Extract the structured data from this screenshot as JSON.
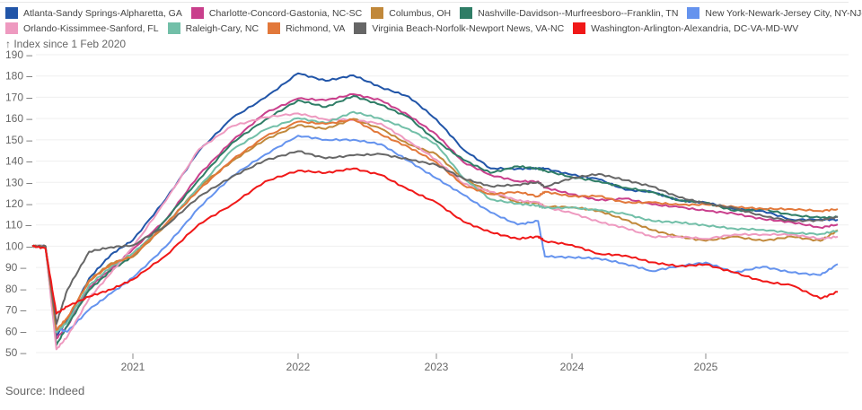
{
  "chart_data": {
    "type": "line",
    "title": "",
    "ylabel": "Index since 1 Feb 2020",
    "xlabel": "",
    "ylim": [
      50,
      190
    ],
    "yticks": [
      50,
      60,
      70,
      80,
      90,
      100,
      110,
      120,
      130,
      140,
      150,
      160,
      170,
      180,
      190
    ],
    "xticks": [
      "2021",
      "2022",
      "2023",
      "2024",
      "2025"
    ],
    "xlim": [
      2020.08,
      2025.92
    ],
    "grid": true,
    "legend_position": "top",
    "x": [
      2020.08,
      2020.2,
      2020.3,
      2020.4,
      2020.6,
      2020.8,
      2021.0,
      2021.2,
      2021.4,
      2021.6,
      2021.8,
      2022.0,
      2022.2,
      2022.4,
      2022.6,
      2022.8,
      2023.0,
      2023.2,
      2023.4,
      2023.6,
      2023.75,
      2023.8,
      2024.0,
      2024.2,
      2024.4,
      2024.6,
      2024.8,
      2025.0,
      2025.2,
      2025.4,
      2025.6,
      2025.8,
      2025.92
    ],
    "series": [
      {
        "name": "Atlanta-Sandy Springs-Alpharetta, GA",
        "color": "#2155a8",
        "values": [
          100,
          100,
          58,
          65,
          85,
          96,
          103,
          122,
          145,
          160,
          170,
          181,
          178,
          180,
          175,
          170,
          160,
          145,
          137,
          136,
          137,
          136,
          134,
          131,
          127,
          125,
          122,
          120,
          118,
          116,
          113,
          112,
          113
        ]
      },
      {
        "name": "Charlotte-Concord-Gastonia, NC-SC",
        "color": "#c93f8c",
        "values": [
          100,
          100,
          56,
          63,
          80,
          90,
          98,
          113,
          133,
          150,
          162,
          170,
          168,
          172,
          168,
          162,
          152,
          140,
          133,
          131,
          130,
          128,
          124,
          122,
          122,
          120,
          118,
          117,
          115,
          113,
          111,
          109,
          110
        ]
      },
      {
        "name": "Columbus, OH",
        "color": "#c1883a",
        "values": [
          100,
          100,
          60,
          66,
          84,
          92,
          95,
          110,
          128,
          140,
          150,
          157,
          155,
          160,
          155,
          148,
          143,
          132,
          125,
          121,
          120,
          119,
          118,
          117,
          112,
          108,
          104,
          103,
          104,
          103,
          104,
          103,
          107
        ]
      },
      {
        "name": "Nashville-Davidson--Murfreesboro--Franklin, TN",
        "color": "#2f7d66",
        "values": [
          100,
          100,
          54,
          62,
          80,
          88,
          96,
          112,
          132,
          148,
          160,
          168,
          166,
          170,
          167,
          160,
          150,
          140,
          135,
          137,
          137,
          135,
          133,
          130,
          128,
          125,
          122,
          120,
          117,
          117,
          115,
          113,
          114
        ]
      },
      {
        "name": "New York-Newark-Jersey City, NY-NJ-PA",
        "color": "#6593ee",
        "values": [
          100,
          100,
          61,
          60,
          70,
          78,
          85,
          100,
          118,
          133,
          143,
          152,
          150,
          150,
          148,
          140,
          132,
          124,
          116,
          110,
          112,
          95,
          95,
          94,
          92,
          88,
          91,
          92,
          88,
          90,
          88,
          86,
          92
        ]
      },
      {
        "name": "Orlando-Kissimmee-Sanford, FL",
        "color": "#ee9ac0",
        "values": [
          100,
          100,
          51,
          58,
          75,
          88,
          99,
          122,
          145,
          157,
          160,
          163,
          159,
          160,
          157,
          150,
          140,
          130,
          125,
          122,
          120,
          119,
          115,
          112,
          108,
          105,
          104,
          104,
          105,
          106,
          105,
          104,
          104
        ]
      },
      {
        "name": "Raleigh-Cary, NC",
        "color": "#72bfa8",
        "values": [
          100,
          100,
          60,
          64,
          82,
          90,
          97,
          110,
          128,
          145,
          155,
          160,
          158,
          163,
          160,
          155,
          148,
          132,
          122,
          120,
          119,
          118,
          118,
          117,
          115,
          112,
          111,
          110,
          108,
          108,
          106,
          106,
          107
        ]
      },
      {
        "name": "Richmond, VA",
        "color": "#e2783a",
        "values": [
          100,
          100,
          61,
          66,
          84,
          91,
          96,
          110,
          127,
          140,
          152,
          158,
          158,
          159,
          153,
          146,
          140,
          128,
          125,
          125,
          124,
          125,
          124,
          123,
          121,
          120,
          120,
          119,
          119,
          117,
          118,
          116,
          118
        ]
      },
      {
        "name": "Virginia Beach-Norfolk-Newport News, VA-NC",
        "color": "#666666",
        "values": [
          100,
          100,
          63,
          80,
          97,
          100,
          100,
          110,
          123,
          133,
          140,
          145,
          141,
          143,
          143,
          141,
          138,
          132,
          128,
          129,
          130,
          128,
          132,
          134,
          131,
          128,
          123,
          120,
          118,
          114,
          112,
          112,
          114
        ]
      },
      {
        "name": "Washington-Arlington-Alexandria, DC-VA-MD-WV",
        "color": "#f01818",
        "values": [
          100,
          99,
          68,
          72,
          76,
          80,
          84,
          96,
          110,
          120,
          130,
          136,
          134,
          137,
          133,
          127,
          120,
          112,
          106,
          104,
          104,
          103,
          100,
          97,
          95,
          93,
          90,
          92,
          87,
          84,
          81,
          76,
          78
        ]
      }
    ]
  },
  "source": "Source: Indeed"
}
